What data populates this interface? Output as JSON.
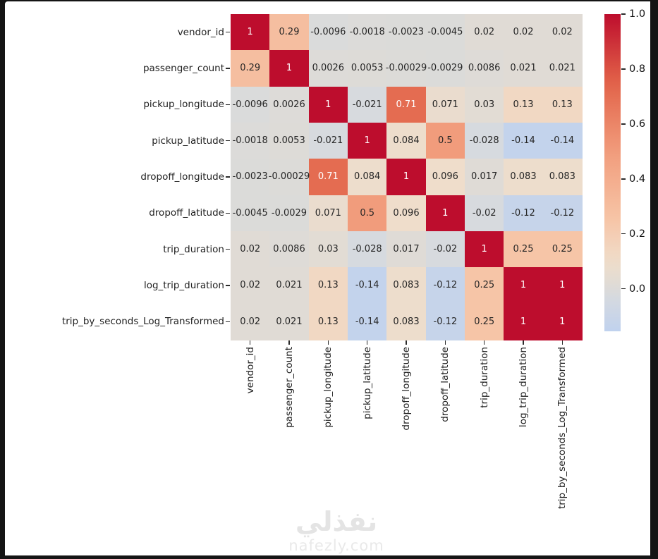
{
  "watermark": {
    "arabic": "نفذلي",
    "domain": "nafezly.com"
  },
  "colors": {
    "page_background": "#141414",
    "figure_background": "#ffffff",
    "annotation_dark": "#262626",
    "annotation_light": "#ffffff",
    "tick_color": "#2b2b2b",
    "anchors": [
      [
        -0.155,
        "#c0d2ee"
      ],
      [
        -0.02,
        "#d7dade"
      ],
      [
        0.0,
        "#dcdbd8"
      ],
      [
        0.1,
        "#f0ddca"
      ],
      [
        0.25,
        "#f6c5a7"
      ],
      [
        0.5,
        "#f19c7c"
      ],
      [
        0.75,
        "#e26349"
      ],
      [
        1.0,
        "#bd0d2d"
      ]
    ],
    "white_text_threshold": 0.65
  },
  "chart_data": {
    "type": "heatmap",
    "title": "",
    "colormap": "coolwarm",
    "center": 0,
    "annotated": true,
    "x_tick_rotation": 90,
    "labels": [
      "vendor_id",
      "passenger_count",
      "pickup_longitude",
      "pickup_latitude",
      "dropoff_longitude",
      "dropoff_latitude",
      "trip_duration",
      "log_trip_duration",
      "trip_by_seconds_Log_Transformed"
    ],
    "matrix": [
      [
        1,
        0.29,
        -0.0096,
        -0.0018,
        -0.0023,
        -0.0045,
        0.02,
        0.02,
        0.02
      ],
      [
        0.29,
        1,
        0.0026,
        0.0053,
        -0.00029,
        -0.0029,
        0.0086,
        0.021,
        0.021
      ],
      [
        -0.0096,
        0.0026,
        1,
        -0.021,
        0.71,
        0.071,
        0.03,
        0.13,
        0.13
      ],
      [
        -0.0018,
        0.0053,
        -0.021,
        1,
        0.084,
        0.5,
        -0.028,
        -0.14,
        -0.14
      ],
      [
        -0.0023,
        -0.00029,
        0.71,
        0.084,
        1,
        0.096,
        0.017,
        0.083,
        0.083
      ],
      [
        -0.0045,
        -0.0029,
        0.071,
        0.5,
        0.096,
        1,
        -0.02,
        -0.12,
        -0.12
      ],
      [
        0.02,
        0.0086,
        0.03,
        -0.028,
        0.017,
        -0.02,
        1,
        0.25,
        0.25
      ],
      [
        0.02,
        0.021,
        0.13,
        -0.14,
        0.083,
        -0.12,
        0.25,
        1,
        1
      ],
      [
        0.02,
        0.021,
        0.13,
        -0.14,
        0.083,
        -0.12,
        0.25,
        1,
        1
      ]
    ],
    "colorbar": {
      "tick_labels": [
        "1.0",
        "0.8",
        "0.6",
        "0.4",
        "0.2",
        "0.0"
      ],
      "vmin": -0.155,
      "vmax": 1.0,
      "position": "right"
    }
  }
}
